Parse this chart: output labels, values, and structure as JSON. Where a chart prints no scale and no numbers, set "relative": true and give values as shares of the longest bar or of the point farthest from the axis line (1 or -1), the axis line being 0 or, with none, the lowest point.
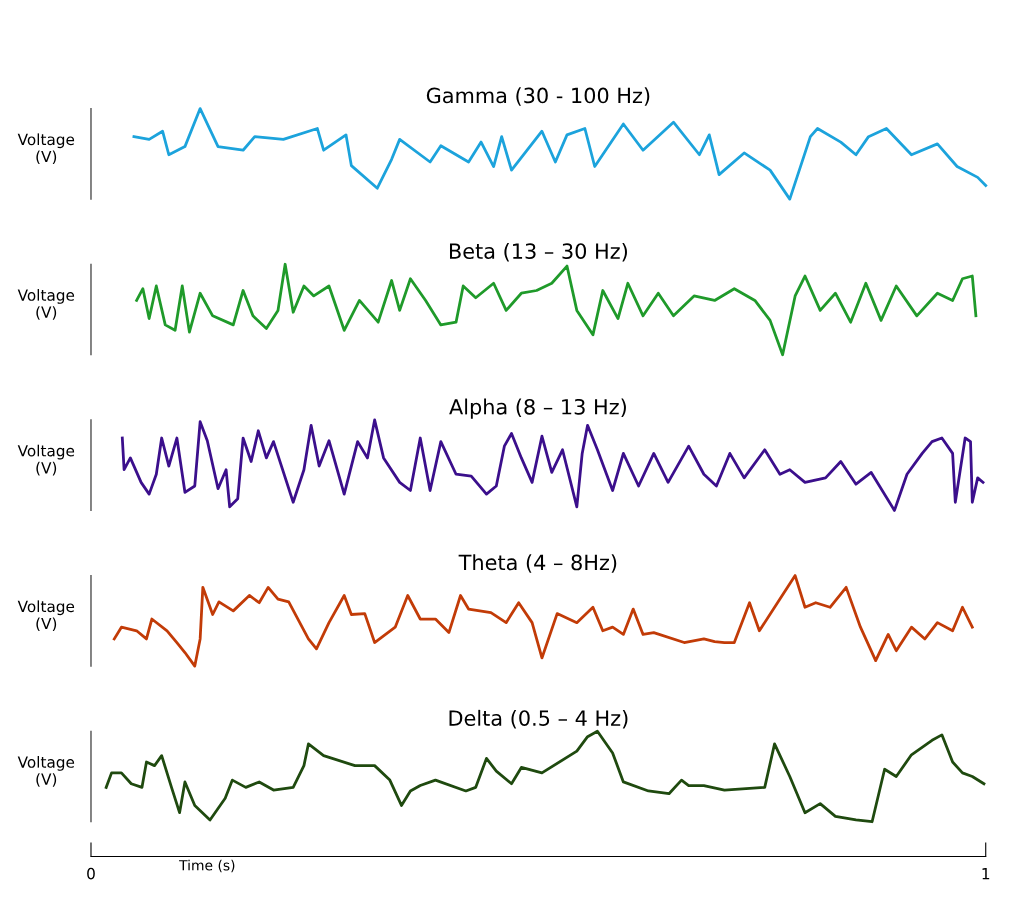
{
  "chart_data": [
    {
      "type": "line",
      "title": "Gamma (30 - 100 Hz)",
      "ylabel": "Voltage\n(V)",
      "relative": true,
      "xlim": [
        0,
        1
      ],
      "tick_labels": false,
      "series": [
        {
          "color": "#1ca3dc",
          "x": [
            0.048,
            0.065,
            0.08,
            0.087,
            0.105,
            0.122,
            0.142,
            0.17,
            0.183,
            0.215,
            0.253,
            0.26,
            0.285,
            0.291,
            0.32,
            0.336,
            0.345,
            0.379,
            0.391,
            0.422,
            0.436,
            0.45,
            0.459,
            0.47,
            0.504,
            0.519,
            0.532,
            0.552,
            0.563,
            0.595,
            0.617,
            0.651,
            0.68,
            0.691,
            0.702,
            0.73,
            0.759,
            0.781,
            0.804,
            0.812,
            0.838,
            0.855,
            0.869,
            0.889,
            0.917,
            0.946,
            0.968,
            0.991,
            1.0
          ],
          "values": [
            0.69,
            0.66,
            0.75,
            0.49,
            0.58,
            1.0,
            0.58,
            0.54,
            0.69,
            0.66,
            0.78,
            0.54,
            0.71,
            0.37,
            0.12,
            0.44,
            0.66,
            0.41,
            0.59,
            0.41,
            0.63,
            0.36,
            0.69,
            0.32,
            0.75,
            0.41,
            0.71,
            0.78,
            0.36,
            0.83,
            0.54,
            0.85,
            0.49,
            0.71,
            0.27,
            0.51,
            0.32,
            0,
            0.69,
            0.78,
            0.63,
            0.49,
            0.69,
            0.78,
            0.49,
            0.61,
            0.36,
            0.24,
            0.15
          ]
        }
      ]
    },
    {
      "type": "line",
      "title": "Beta (13 – 30 Hz)",
      "ylabel": "Voltage\n(V)",
      "relative": true,
      "xlim": [
        0,
        1
      ],
      "tick_labels": false,
      "series": [
        {
          "color": "#1f9a2a",
          "x": [
            0.051,
            0.058,
            0.065,
            0.073,
            0.083,
            0.094,
            0.102,
            0.11,
            0.122,
            0.136,
            0.159,
            0.17,
            0.181,
            0.196,
            0.209,
            0.217,
            0.226,
            0.238,
            0.249,
            0.266,
            0.283,
            0.3,
            0.321,
            0.336,
            0.345,
            0.357,
            0.374,
            0.391,
            0.408,
            0.416,
            0.43,
            0.45,
            0.464,
            0.481,
            0.498,
            0.515,
            0.532,
            0.543,
            0.561,
            0.572,
            0.589,
            0.6,
            0.617,
            0.634,
            0.651,
            0.674,
            0.697,
            0.719,
            0.742,
            0.759,
            0.773,
            0.787,
            0.798,
            0.815,
            0.832,
            0.849,
            0.866,
            0.883,
            0.9,
            0.923,
            0.946,
            0.963,
            0.974,
            0.985,
            0.989
          ],
          "values": [
            0.6,
            0.73,
            0.4,
            0.76,
            0.33,
            0.27,
            0.76,
            0.25,
            0.68,
            0.43,
            0.33,
            0.71,
            0.43,
            0.29,
            0.49,
            1.0,
            0.47,
            0.76,
            0.65,
            0.76,
            0.27,
            0.6,
            0.36,
            0.82,
            0.49,
            0.84,
            0.6,
            0.33,
            0.36,
            0.76,
            0.63,
            0.79,
            0.49,
            0.68,
            0.71,
            0.79,
            0.98,
            0.49,
            0.22,
            0.71,
            0.4,
            0.79,
            0.43,
            0.68,
            0.43,
            0.65,
            0.6,
            0.73,
            0.6,
            0.38,
            0,
            0.65,
            0.87,
            0.49,
            0.68,
            0.36,
            0.79,
            0.38,
            0.76,
            0.43,
            0.68,
            0.6,
            0.84,
            0.87,
            0.43
          ]
        }
      ]
    },
    {
      "type": "line",
      "title": "Alpha (8 – 13 Hz)",
      "ylabel": "Voltage\n(V)",
      "relative": true,
      "xlim": [
        0,
        1
      ],
      "tick_labels": false,
      "series": [
        {
          "color": "#3b0f8c",
          "x": [
            0.035,
            0.037,
            0.044,
            0.056,
            0.065,
            0.073,
            0.079,
            0.087,
            0.096,
            0.105,
            0.116,
            0.122,
            0.13,
            0.142,
            0.151,
            0.155,
            0.164,
            0.17,
            0.179,
            0.187,
            0.196,
            0.204,
            0.226,
            0.238,
            0.246,
            0.255,
            0.266,
            0.283,
            0.298,
            0.309,
            0.317,
            0.327,
            0.345,
            0.357,
            0.368,
            0.379,
            0.391,
            0.408,
            0.425,
            0.442,
            0.453,
            0.462,
            0.47,
            0.481,
            0.493,
            0.504,
            0.515,
            0.527,
            0.543,
            0.549,
            0.555,
            0.566,
            0.583,
            0.595,
            0.612,
            0.629,
            0.645,
            0.668,
            0.685,
            0.699,
            0.714,
            0.73,
            0.753,
            0.77,
            0.781,
            0.798,
            0.821,
            0.838,
            0.855,
            0.872,
            0.898,
            0.912,
            0.929,
            0.94,
            0.951,
            0.963,
            0.966,
            0.977,
            0.983,
            0.985,
            0.991,
            0.997
          ],
          "values": [
            0.8,
            0.45,
            0.58,
            0.31,
            0.18,
            0.4,
            0.8,
            0.49,
            0.8,
            0.2,
            0.27,
            0.98,
            0.77,
            0.24,
            0.45,
            0.04,
            0.13,
            0.8,
            0.54,
            0.88,
            0.58,
            0.76,
            0.09,
            0.45,
            0.94,
            0.49,
            0.77,
            0.18,
            0.76,
            0.58,
            1.0,
            0.58,
            0.31,
            0.22,
            0.8,
            0.22,
            0.76,
            0.4,
            0.38,
            0.18,
            0.27,
            0.71,
            0.85,
            0.58,
            0.31,
            0.82,
            0.42,
            0.67,
            0.04,
            0.63,
            0.94,
            0.67,
            0.22,
            0.63,
            0.27,
            0.63,
            0.31,
            0.71,
            0.4,
            0.27,
            0.63,
            0.36,
            0.67,
            0.4,
            0.45,
            0.31,
            0.36,
            0.54,
            0.29,
            0.42,
            0,
            0.4,
            0.63,
            0.76,
            0.8,
            0.63,
            0.09,
            0.8,
            0.76,
            0.09,
            0.36,
            0.31
          ]
        }
      ]
    },
    {
      "type": "line",
      "title": "Theta (4 – 8Hz)",
      "ylabel": "Voltage\n(V)",
      "relative": true,
      "xlim": [
        0,
        1
      ],
      "tick_labels": false,
      "series": [
        {
          "color": "#c23b07",
          "x": [
            0.026,
            0.034,
            0.051,
            0.062,
            0.068,
            0.085,
            0.096,
            0.105,
            0.116,
            0.122,
            0.125,
            0.136,
            0.143,
            0.159,
            0.177,
            0.188,
            0.198,
            0.209,
            0.221,
            0.243,
            0.252,
            0.266,
            0.283,
            0.291,
            0.306,
            0.317,
            0.34,
            0.354,
            0.368,
            0.385,
            0.4,
            0.413,
            0.422,
            0.447,
            0.464,
            0.478,
            0.493,
            0.504,
            0.521,
            0.543,
            0.561,
            0.572,
            0.583,
            0.595,
            0.606,
            0.617,
            0.629,
            0.663,
            0.685,
            0.697,
            0.708,
            0.719,
            0.736,
            0.747,
            0.77,
            0.787,
            0.798,
            0.81,
            0.826,
            0.844,
            0.86,
            0.877,
            0.891,
            0.9,
            0.917,
            0.932,
            0.946,
            0.963,
            0.974,
            0.985
          ],
          "values": [
            0.3,
            0.43,
            0.39,
            0.3,
            0.52,
            0.39,
            0.26,
            0.15,
            0,
            0.3,
            0.87,
            0.57,
            0.71,
            0.61,
            0.78,
            0.7,
            0.87,
            0.74,
            0.71,
            0.3,
            0.19,
            0.48,
            0.78,
            0.57,
            0.58,
            0.26,
            0.43,
            0.78,
            0.52,
            0.52,
            0.37,
            0.78,
            0.63,
            0.59,
            0.48,
            0.7,
            0.48,
            0.09,
            0.58,
            0.48,
            0.65,
            0.39,
            0.43,
            0.35,
            0.63,
            0.35,
            0.37,
            0.26,
            0.3,
            0.27,
            0.26,
            0.26,
            0.7,
            0.39,
            0.74,
            1.0,
            0.65,
            0.7,
            0.65,
            0.87,
            0.43,
            0.06,
            0.35,
            0.17,
            0.43,
            0.3,
            0.48,
            0.39,
            0.65,
            0.43
          ]
        }
      ]
    },
    {
      "type": "line",
      "title": "Delta (0.5 – 4 Hz)",
      "ylabel": "Voltage\n(V)",
      "xlabel": "Time (s)",
      "relative": true,
      "xlim": [
        0,
        1
      ],
      "xticks": [
        0,
        1
      ],
      "tick_labels": "x",
      "series": [
        {
          "color": "#1f4a0f",
          "x": [
            0.017,
            0.023,
            0.034,
            0.045,
            0.057,
            0.062,
            0.071,
            0.079,
            0.09,
            0.099,
            0.105,
            0.116,
            0.133,
            0.15,
            0.158,
            0.173,
            0.188,
            0.204,
            0.226,
            0.238,
            0.243,
            0.26,
            0.295,
            0.317,
            0.334,
            0.347,
            0.357,
            0.368,
            0.385,
            0.419,
            0.43,
            0.442,
            0.453,
            0.47,
            0.481,
            0.504,
            0.543,
            0.555,
            0.566,
            0.583,
            0.595,
            0.623,
            0.646,
            0.66,
            0.668,
            0.685,
            0.708,
            0.753,
            0.764,
            0.781,
            0.798,
            0.815,
            0.832,
            0.855,
            0.873,
            0.887,
            0.9,
            0.917,
            0.94,
            0.951,
            0.963,
            0.974,
            0.985,
            0.998
          ],
          "values": [
            0.38,
            0.54,
            0.54,
            0.42,
            0.38,
            0.66,
            0.62,
            0.73,
            0.38,
            0.1,
            0.44,
            0.18,
            0.02,
            0.26,
            0.46,
            0.38,
            0.44,
            0.35,
            0.38,
            0.62,
            0.86,
            0.73,
            0.62,
            0.62,
            0.46,
            0.18,
            0.34,
            0.4,
            0.46,
            0.34,
            0.38,
            0.7,
            0.56,
            0.42,
            0.6,
            0.54,
            0.78,
            0.94,
            1.0,
            0.76,
            0.44,
            0.34,
            0.31,
            0.46,
            0.4,
            0.4,
            0.35,
            0.38,
            0.86,
            0.5,
            0.1,
            0.2,
            0.06,
            0.02,
            0,
            0.58,
            0.5,
            0.74,
            0.9,
            0.96,
            0.66,
            0.54,
            0.5,
            0.42
          ]
        }
      ]
    }
  ]
}
